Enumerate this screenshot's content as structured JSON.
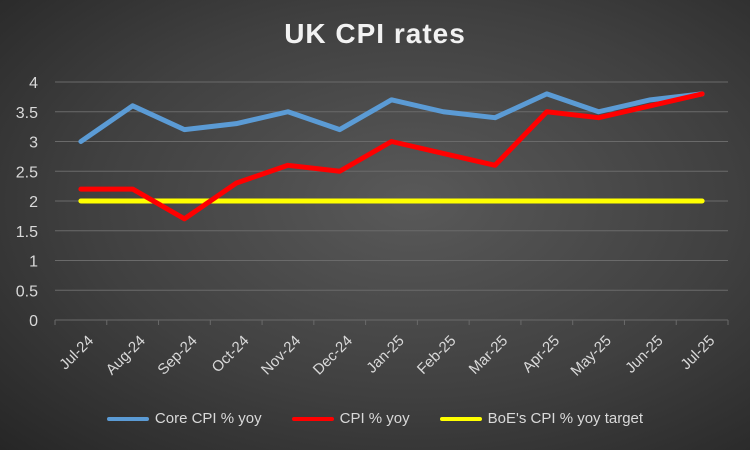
{
  "chart_data": {
    "type": "line",
    "title": "UK CPI rates",
    "xlabel": "",
    "ylabel": "",
    "ylim": [
      0,
      4
    ],
    "yticks": [
      "0",
      "0.5",
      "1",
      "1.5",
      "2",
      "2.5",
      "3",
      "3.5",
      "4"
    ],
    "grid": true,
    "legend_position": "bottom",
    "categories": [
      "Jul-24",
      "Aug-24",
      "Sep-24",
      "Oct-24",
      "Nov-24",
      "Dec-24",
      "Jan-25",
      "Feb-25",
      "Mar-25",
      "Apr-25",
      "May-25",
      "Jun-25",
      "Jul-25"
    ],
    "series": [
      {
        "name": "Core CPI % yoy",
        "color": "#5b9bd5",
        "values": [
          3.0,
          3.6,
          3.2,
          3.3,
          3.5,
          3.2,
          3.7,
          3.5,
          3.4,
          3.8,
          3.5,
          3.7,
          3.8
        ]
      },
      {
        "name": "CPI % yoy",
        "color": "#ff0000",
        "values": [
          2.2,
          2.2,
          1.7,
          2.3,
          2.6,
          2.5,
          3.0,
          2.8,
          2.6,
          3.5,
          3.4,
          3.6,
          3.8
        ]
      },
      {
        "name": "BoE's CPI % yoy target",
        "color": "#ffff00",
        "values": [
          2,
          2,
          2,
          2,
          2,
          2,
          2,
          2,
          2,
          2,
          2,
          2,
          2
        ]
      }
    ]
  }
}
